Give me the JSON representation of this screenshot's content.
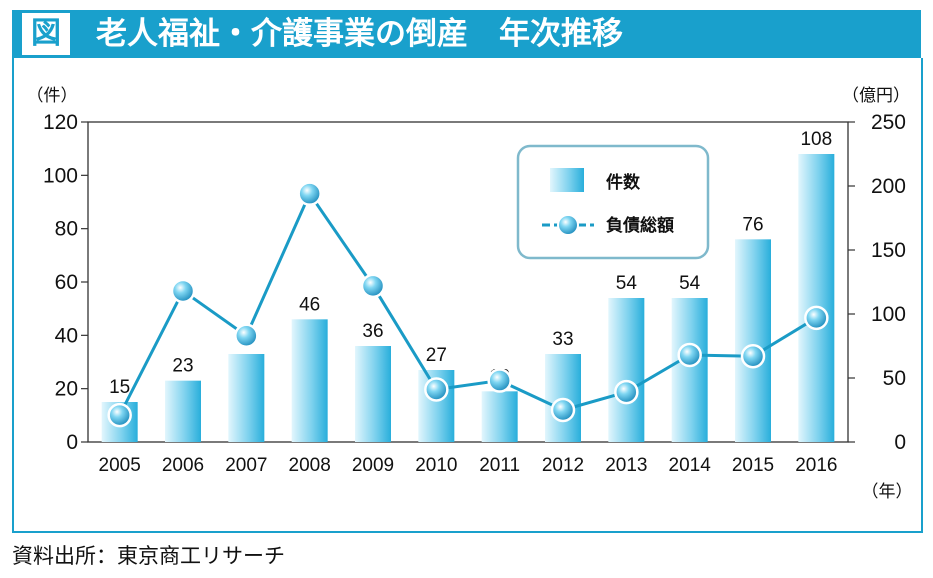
{
  "header": {
    "figure_label": "図",
    "title": "老人福祉・介護事業の倒産　年次推移"
  },
  "source": "資料出所：東京商工リサーチ",
  "colors": {
    "accent": "#19a0cc",
    "bar_light": "#d6f1fb",
    "bar_dark": "#28b0dc",
    "line": "#1a9bc6"
  },
  "chart_data": {
    "type": "bar",
    "categories": [
      "2005",
      "2006",
      "2007",
      "2008",
      "2009",
      "2010",
      "2011",
      "2012",
      "2013",
      "2014",
      "2015",
      "2016"
    ],
    "y_unit_left": "（件）",
    "y_unit_right": "（億円）",
    "x_unit": "（年）",
    "ylim_left": [
      0,
      120
    ],
    "yticks_left": [
      0,
      20,
      40,
      60,
      80,
      100,
      120
    ],
    "ylim_right": [
      0,
      250
    ],
    "yticks_right": [
      0,
      50,
      100,
      150,
      200,
      250
    ],
    "legend_position": "top-right",
    "series": [
      {
        "name": "件数",
        "type": "bar",
        "axis": "left",
        "values": [
          15,
          23,
          33,
          46,
          36,
          27,
          19,
          33,
          54,
          54,
          76,
          108
        ]
      },
      {
        "name": "負債総額",
        "type": "line",
        "axis": "right",
        "values": [
          21,
          118,
          83,
          194,
          122,
          41,
          48,
          25,
          39,
          68,
          67,
          97
        ]
      }
    ]
  }
}
